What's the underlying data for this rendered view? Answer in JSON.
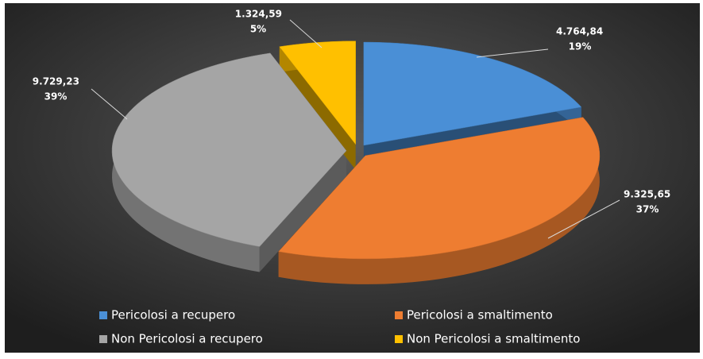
{
  "chart_data": {
    "type": "pie",
    "style": "3d-exploded",
    "categories": [
      "Pericolosi a recupero",
      "Pericolosi a smaltimento",
      "Non Pericolosi a recupero",
      "Non Pericolosi a smaltimento"
    ],
    "values": [
      4764.84,
      9325.65,
      9729.23,
      1324.59
    ],
    "value_labels": [
      "4.764,84",
      "9.325,65",
      "9.729,23",
      "1.324,59"
    ],
    "percent_labels": [
      "19%",
      "37%",
      "39%",
      "5%"
    ],
    "colors": [
      "#4a8fd6",
      "#ee7d31",
      "#a5a5a5",
      "#ffc000"
    ],
    "legend": "bottom"
  }
}
